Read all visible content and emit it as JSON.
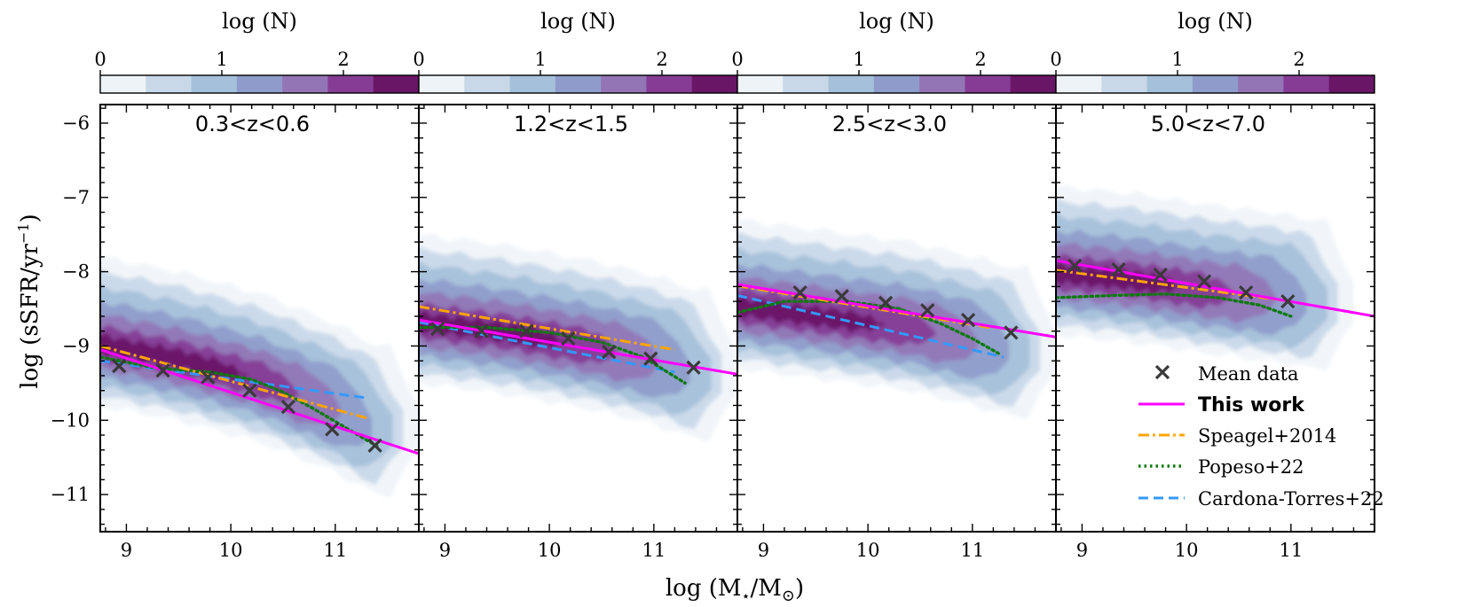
{
  "figure": {
    "xlabel": "log (M",
    "xlabel_sub1": "⋆",
    "xlabel_mid": "/M",
    "xlabel_sub2": "⊙",
    "xlabel_end": ")",
    "ylabel": "log (sSFR/yr",
    "ylabel_sup": "−1",
    "ylabel_end": ")",
    "colorbar_label": "log (N)",
    "colorbar_ticks": [
      "0",
      "1",
      "2"
    ],
    "colorbar_colors": [
      "#eef3f8",
      "#c8d8e8",
      "#a5c0da",
      "#8f9ccb",
      "#9375b6",
      "#863c95",
      "#6a1667"
    ]
  },
  "legend": {
    "mean": "Mean data",
    "thiswork": "This work",
    "speagel": "Speagel+2014",
    "popeso": "Popeso+22",
    "cardona": "Cardona-Torres+22"
  },
  "chart_data": [
    {
      "type": "scatter",
      "title": "0.3<z<0.6",
      "xlim": [
        8.75,
        11.8
      ],
      "ylim": [
        -11.5,
        -5.75
      ],
      "xticks": [
        "9",
        "10",
        "11"
      ],
      "yticks": [
        "−6",
        "−7",
        "−8",
        "−9",
        "−10",
        "−11"
      ],
      "mean_data": {
        "x": [
          8.93,
          9.35,
          9.78,
          10.18,
          10.55,
          10.97,
          11.38
        ],
        "y": [
          -9.27,
          -9.33,
          -9.42,
          -9.6,
          -9.82,
          -10.12,
          -10.34
        ]
      },
      "this_work": {
        "x": [
          8.75,
          11.8
        ],
        "y": [
          -9.05,
          -10.45
        ]
      },
      "speagel": {
        "x": [
          8.75,
          11.3
        ],
        "y": [
          -9.0,
          -9.97
        ]
      },
      "popeso": {
        "x": [
          8.75,
          9.3,
          9.8,
          10.2,
          10.5,
          10.8,
          11.1,
          11.4
        ],
        "y": [
          -9.15,
          -9.3,
          -9.35,
          -9.45,
          -9.62,
          -9.85,
          -10.1,
          -10.35
        ]
      },
      "cardona": {
        "x": [
          8.75,
          11.3
        ],
        "y": [
          -9.2,
          -9.7
        ]
      },
      "density_ridge": {
        "x": [
          8.75,
          9.5,
          10.3,
          11.0,
          11.4
        ],
        "y": [
          -8.95,
          -9.15,
          -9.45,
          -9.85,
          -10.15
        ]
      }
    },
    {
      "type": "scatter",
      "title": "1.2<z<1.5",
      "xlim": [
        8.75,
        11.8
      ],
      "ylim": [
        -11.5,
        -5.75
      ],
      "xticks": [
        "9",
        "10",
        "11"
      ],
      "yticks": [],
      "mean_data": {
        "x": [
          8.93,
          9.35,
          9.78,
          10.18,
          10.57,
          10.97,
          11.38
        ],
        "y": [
          -8.77,
          -8.8,
          -8.8,
          -8.9,
          -9.08,
          -9.17,
          -9.29
        ]
      },
      "this_work": {
        "x": [
          8.75,
          11.8
        ],
        "y": [
          -8.65,
          -9.38
        ]
      },
      "speagel": {
        "x": [
          8.75,
          11.2
        ],
        "y": [
          -8.47,
          -9.05
        ]
      },
      "popeso": {
        "x": [
          8.75,
          9.4,
          10.0,
          10.5,
          10.9,
          11.3
        ],
        "y": [
          -8.75,
          -8.75,
          -8.82,
          -8.95,
          -9.15,
          -9.5
        ]
      },
      "cardona": {
        "x": [
          8.75,
          11.2
        ],
        "y": [
          -8.68,
          -9.35
        ]
      },
      "density_ridge": {
        "x": [
          8.75,
          9.6,
          10.4,
          11.0,
          11.4
        ],
        "y": [
          -8.65,
          -8.8,
          -9.0,
          -9.2,
          -9.4
        ]
      }
    },
    {
      "type": "scatter",
      "title": "2.5<z<3.0",
      "xlim": [
        8.75,
        11.8
      ],
      "ylim": [
        -11.5,
        -5.75
      ],
      "xticks": [
        "9",
        "10",
        "11"
      ],
      "yticks": [],
      "mean_data": {
        "x": [
          9.35,
          9.75,
          10.17,
          10.57,
          10.96,
          11.37
        ],
        "y": [
          -8.28,
          -8.33,
          -8.42,
          -8.52,
          -8.65,
          -8.82
        ]
      },
      "this_work": {
        "x": [
          8.75,
          11.8
        ],
        "y": [
          -8.17,
          -8.88
        ]
      },
      "speagel": {
        "x": [
          8.75,
          11.2
        ],
        "y": [
          -8.19,
          -8.76
        ]
      },
      "popeso": {
        "x": [
          8.75,
          9.2,
          9.8,
          10.3,
          10.7,
          11.0,
          11.25
        ],
        "y": [
          -8.55,
          -8.4,
          -8.4,
          -8.5,
          -8.7,
          -8.9,
          -9.1
        ]
      },
      "cardona": {
        "x": [
          8.75,
          11.3
        ],
        "y": [
          -8.32,
          -9.15
        ]
      },
      "density_ridge": {
        "x": [
          8.75,
          9.6,
          10.4,
          11.0,
          11.4
        ],
        "y": [
          -8.45,
          -8.6,
          -8.75,
          -8.95,
          -9.1
        ]
      }
    },
    {
      "type": "scatter",
      "title": "5.0<z<7.0",
      "xlim": [
        8.75,
        11.8
      ],
      "ylim": [
        -11.5,
        -5.75
      ],
      "xticks": [
        "9",
        "10",
        "11"
      ],
      "yticks": [],
      "mean_data": {
        "x": [
          8.93,
          9.35,
          9.75,
          10.17,
          10.57,
          10.97
        ],
        "y": [
          -7.92,
          -7.97,
          -8.04,
          -8.13,
          -8.28,
          -8.4
        ]
      },
      "this_work": {
        "x": [
          8.75,
          11.8
        ],
        "y": [
          -7.85,
          -8.6
        ]
      },
      "speagel": {
        "x": [
          8.75,
          11.0
        ],
        "y": [
          -7.98,
          -8.4
        ]
      },
      "popeso": {
        "x": [
          8.75,
          9.3,
          9.8,
          10.3,
          10.7,
          11.0
        ],
        "y": [
          -8.35,
          -8.32,
          -8.3,
          -8.35,
          -8.45,
          -8.6
        ]
      },
      "density_ridge": {
        "x": [
          8.75,
          9.5,
          10.2,
          10.8,
          11.2
        ],
        "y": [
          -8.0,
          -8.1,
          -8.25,
          -8.35,
          -8.45
        ]
      }
    }
  ]
}
